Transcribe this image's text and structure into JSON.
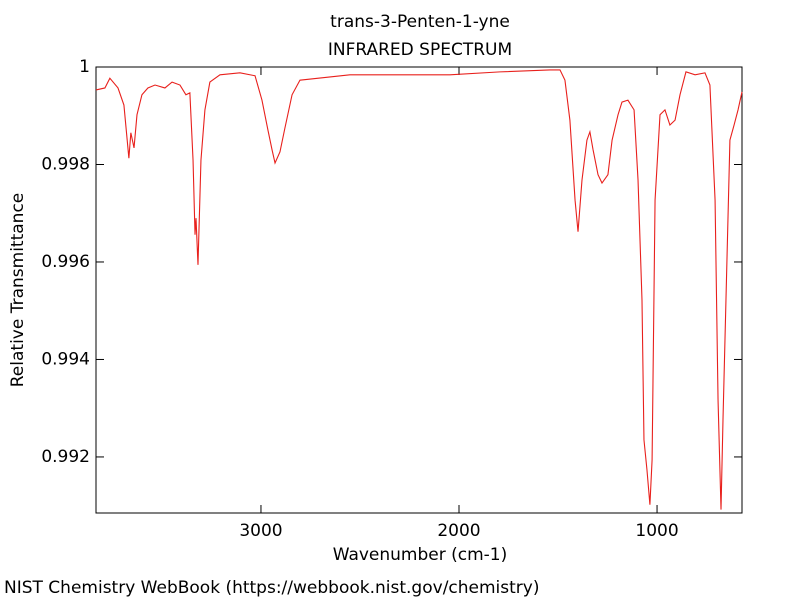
{
  "chart_data": {
    "type": "line",
    "title": "trans-3-Penten-1-yne",
    "subtitle": "INFRARED SPECTRUM",
    "x_label": "Wavenumber (cm-1)",
    "y_label": "Relative Transmittance",
    "footer": "NIST Chemistry WebBook (https://webbook.nist.gov/chemistry)",
    "color": "#e8201c",
    "xlim": [
      3833,
      571
    ],
    "ylim": [
      0.99085,
      1
    ],
    "xticks": [
      3000,
      2000,
      1000
    ],
    "yticks": [
      0.992,
      0.994,
      0.996,
      0.998,
      1
    ],
    "x": [
      3833,
      3788,
      3763,
      3722,
      3692,
      3667,
      3657,
      3641,
      3626,
      3601,
      3571,
      3535,
      3485,
      3449,
      3409,
      3379,
      3359,
      3343,
      3333,
      3328,
      3318,
      3303,
      3283,
      3258,
      3207,
      3106,
      3030,
      2995,
      2965,
      2944,
      2929,
      2904,
      2879,
      2843,
      2803,
      2551,
      2046,
      1793,
      1541,
      1490,
      1465,
      1440,
      1414,
      1399,
      1379,
      1354,
      1339,
      1323,
      1298,
      1278,
      1248,
      1227,
      1197,
      1177,
      1147,
      1116,
      1096,
      1076,
      1066,
      1051,
      1036,
      1025,
      1010,
      985,
      960,
      935,
      909,
      884,
      854,
      808,
      758,
      733,
      707,
      692,
      677,
      667,
      652,
      632,
      611,
      591,
      571
    ],
    "values": [
      0.99953,
      0.99957,
      0.99977,
      0.99957,
      0.99922,
      0.99813,
      0.99865,
      0.99834,
      0.99902,
      0.99943,
      0.99957,
      0.99963,
      0.99957,
      0.99969,
      0.99963,
      0.99943,
      0.99947,
      0.99809,
      0.99656,
      0.9969,
      0.99594,
      0.99809,
      0.99912,
      0.99969,
      0.99984,
      0.99988,
      0.99982,
      0.99932,
      0.99871,
      0.9983,
      0.99803,
      0.99826,
      0.99875,
      0.99943,
      0.99973,
      0.99984,
      0.99984,
      0.9999,
      0.99994,
      0.99994,
      0.99973,
      0.99891,
      0.99727,
      0.99662,
      0.99768,
      0.9985,
      0.99867,
      0.9983,
      0.99779,
      0.99762,
      0.99779,
      0.9985,
      0.99902,
      0.99928,
      0.99932,
      0.99912,
      0.99768,
      0.99522,
      0.99235,
      0.99174,
      0.99102,
      0.99194,
      0.99727,
      0.99902,
      0.99912,
      0.99881,
      0.99891,
      0.99943,
      0.9999,
      0.99984,
      0.99988,
      0.99963,
      0.99727,
      0.99317,
      0.99092,
      0.99276,
      0.99522,
      0.9985,
      0.99881,
      0.99912,
      0.99949
    ]
  }
}
